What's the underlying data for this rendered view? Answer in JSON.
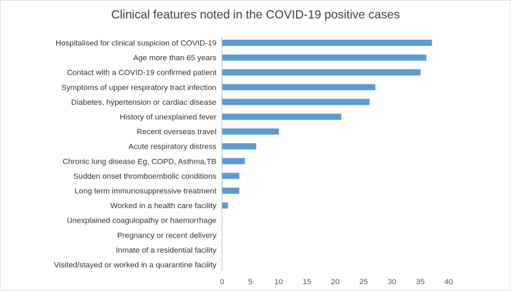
{
  "chart_data": {
    "type": "bar",
    "orientation": "horizontal",
    "title": "Clinical features noted in the COVID-19 positive cases",
    "xlabel": "",
    "ylabel": "",
    "categories": [
      "Hospitalised for clinical suspicion of COVID-19",
      "Age more than 65 years",
      "Contact with a COVID-19 confirmed patient",
      "Symptoms of upper respiratory tract infection",
      "Diabetes, hypertension or cardiac disease",
      "History of unexplained fever",
      "Recent overseas travel",
      "Acute respiratory distress",
      "Chronic lung disease Eg, COPD, Asthma,TB",
      "Sudden onset thromboembolic conditions",
      "Long term immunosuppressive treatment",
      "Worked in a health care facility",
      "Unexplained coagulopathy or haemorrhage",
      "Pregnancy or recent delivery",
      "Inmate of a residential facility",
      "Visited/stayed or worked in a quarantine facility"
    ],
    "values": [
      37,
      36,
      35,
      27,
      26,
      21,
      10,
      6,
      4,
      3,
      3,
      1,
      0,
      0,
      0,
      0
    ],
    "xlim": [
      0,
      40
    ],
    "xticks": [
      "0",
      "5",
      "10",
      "15",
      "20",
      "25",
      "30",
      "35",
      "40"
    ],
    "bar_color": "#5b9bd5",
    "grid": false,
    "legend": "none"
  }
}
